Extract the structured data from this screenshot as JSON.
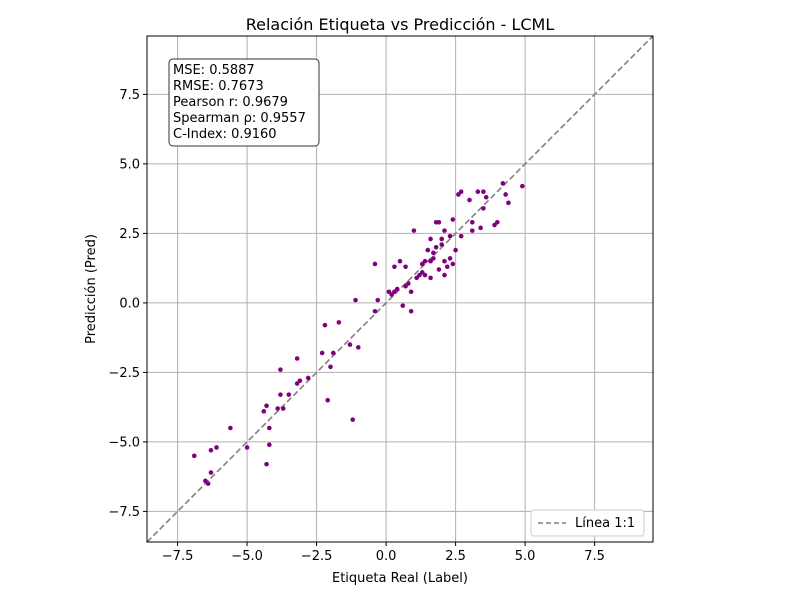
{
  "chart_data": {
    "type": "scatter",
    "title": "Relación Etiqueta vs Predicción - LCML",
    "xlabel": "Etiqueta Real (Label)",
    "ylabel": "Predicción (Pred)",
    "xlim": [
      -8.6,
      9.6
    ],
    "ylim": [
      -8.6,
      9.6
    ],
    "xticks": [
      -7.5,
      -5.0,
      -2.5,
      0.0,
      2.5,
      5.0,
      7.5
    ],
    "yticks": [
      -7.5,
      -5.0,
      -2.5,
      0.0,
      2.5,
      5.0,
      7.5
    ],
    "xtick_labels": [
      "−7.5",
      "−5.0",
      "−2.5",
      "0.0",
      "2.5",
      "5.0",
      "7.5"
    ],
    "ytick_labels": [
      "−7.5",
      "−5.0",
      "−2.5",
      "0.0",
      "2.5",
      "5.0",
      "7.5"
    ],
    "grid": true,
    "point_color": "#800080",
    "reference_line": {
      "label": "Línea 1:1",
      "color": "#808080",
      "style": "dashed",
      "slope": 1,
      "intercept": 0
    },
    "legend": {
      "position": "lower-right",
      "entries": [
        "Línea 1:1"
      ]
    },
    "stats_box": {
      "position": "top-left",
      "lines": [
        "MSE: 0.5887",
        "RMSE: 0.7673",
        "Pearson r: 0.9679",
        "Spearman ρ: 0.9557",
        "C-Index: 0.9160"
      ]
    },
    "points": [
      [
        -6.9,
        -5.5
      ],
      [
        -6.5,
        -6.4
      ],
      [
        -6.4,
        -6.5
      ],
      [
        -6.3,
        -6.1
      ],
      [
        -6.3,
        -5.3
      ],
      [
        -6.1,
        -5.2
      ],
      [
        -5.6,
        -4.5
      ],
      [
        -5.0,
        -5.2
      ],
      [
        -4.4,
        -3.9
      ],
      [
        -4.3,
        -3.7
      ],
      [
        -4.3,
        -5.8
      ],
      [
        -4.2,
        -4.5
      ],
      [
        -4.2,
        -5.1
      ],
      [
        -3.9,
        -3.8
      ],
      [
        -3.8,
        -3.3
      ],
      [
        -3.8,
        -2.4
      ],
      [
        -3.7,
        -3.8
      ],
      [
        -3.5,
        -3.3
      ],
      [
        -3.2,
        -2.9
      ],
      [
        -3.2,
        -2.0
      ],
      [
        -3.1,
        -2.8
      ],
      [
        -2.8,
        -2.7
      ],
      [
        -2.3,
        -1.8
      ],
      [
        -2.2,
        -0.8
      ],
      [
        -2.1,
        -3.5
      ],
      [
        -1.9,
        -1.8
      ],
      [
        -2.0,
        -2.3
      ],
      [
        -1.7,
        -0.7
      ],
      [
        -1.3,
        -1.5
      ],
      [
        -1.2,
        -4.2
      ],
      [
        -1.0,
        -1.6
      ],
      [
        -1.1,
        0.1
      ],
      [
        -0.4,
        -0.3
      ],
      [
        -0.3,
        0.1
      ],
      [
        -0.4,
        1.4
      ],
      [
        0.1,
        0.4
      ],
      [
        0.2,
        0.3
      ],
      [
        0.3,
        0.4
      ],
      [
        0.3,
        1.3
      ],
      [
        0.4,
        0.5
      ],
      [
        0.5,
        1.5
      ],
      [
        0.6,
        -0.1
      ],
      [
        0.7,
        0.6
      ],
      [
        0.8,
        0.7
      ],
      [
        0.7,
        1.3
      ],
      [
        0.9,
        -0.3
      ],
      [
        0.9,
        0.4
      ],
      [
        1.0,
        2.6
      ],
      [
        1.1,
        0.9
      ],
      [
        1.2,
        1.0
      ],
      [
        1.3,
        1.4
      ],
      [
        1.3,
        1.1
      ],
      [
        1.4,
        1.5
      ],
      [
        1.4,
        1.0
      ],
      [
        1.5,
        1.9
      ],
      [
        1.6,
        2.3
      ],
      [
        1.6,
        1.5
      ],
      [
        1.6,
        0.9
      ],
      [
        1.7,
        1.6
      ],
      [
        1.7,
        1.8
      ],
      [
        1.8,
        2.9
      ],
      [
        1.8,
        2.0
      ],
      [
        1.9,
        2.9
      ],
      [
        1.9,
        1.2
      ],
      [
        2.0,
        2.1
      ],
      [
        2.0,
        2.3
      ],
      [
        2.1,
        2.6
      ],
      [
        2.1,
        1.5
      ],
      [
        2.1,
        1.0
      ],
      [
        2.2,
        1.3
      ],
      [
        2.3,
        2.4
      ],
      [
        2.3,
        1.6
      ],
      [
        2.4,
        3.0
      ],
      [
        2.4,
        1.4
      ],
      [
        2.5,
        1.9
      ],
      [
        2.6,
        3.9
      ],
      [
        2.7,
        4.0
      ],
      [
        2.7,
        2.4
      ],
      [
        3.0,
        3.7
      ],
      [
        3.1,
        2.6
      ],
      [
        3.1,
        2.9
      ],
      [
        3.3,
        4.0
      ],
      [
        3.4,
        2.7
      ],
      [
        3.5,
        3.4
      ],
      [
        3.5,
        4.0
      ],
      [
        3.6,
        3.8
      ],
      [
        3.9,
        2.8
      ],
      [
        4.0,
        2.9
      ],
      [
        4.2,
        4.3
      ],
      [
        4.3,
        3.9
      ],
      [
        4.4,
        3.6
      ],
      [
        4.9,
        4.2
      ]
    ]
  }
}
